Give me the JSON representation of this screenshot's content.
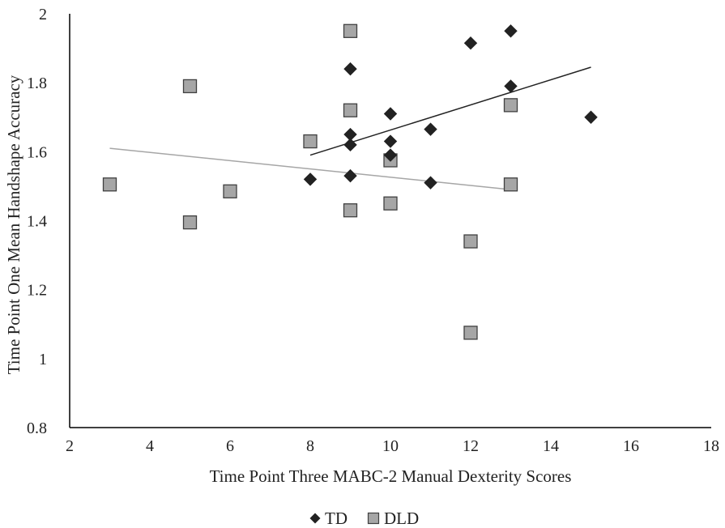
{
  "chart_data": {
    "type": "scatter",
    "xlabel": "Time Point Three MABC-2 Manual Dexterity Scores",
    "ylabel": "Time Point One Mean Handshape Accuracy",
    "xlim": [
      2,
      18
    ],
    "ylim": [
      0.8,
      2
    ],
    "xticks": [
      2,
      4,
      6,
      8,
      10,
      12,
      14,
      16,
      18
    ],
    "yticks": [
      0.8,
      1,
      1.2,
      1.4,
      1.6,
      1.8,
      2
    ],
    "ytick_labels": [
      "0.8",
      "1",
      "1.2",
      "1.4",
      "1.6",
      "1.8",
      "2"
    ],
    "grid": false,
    "legend": "bottom-center",
    "series": [
      {
        "name": "TD",
        "marker": "diamond",
        "color": "#222222",
        "points": [
          [
            8,
            1.52
          ],
          [
            9,
            1.84
          ],
          [
            9,
            1.65
          ],
          [
            9,
            1.62
          ],
          [
            9,
            1.53
          ],
          [
            10,
            1.71
          ],
          [
            10,
            1.63
          ],
          [
            10,
            1.59
          ],
          [
            11,
            1.665
          ],
          [
            11,
            1.51
          ],
          [
            12,
            1.915
          ],
          [
            13,
            1.95
          ],
          [
            13,
            1.79
          ],
          [
            15,
            1.7
          ]
        ],
        "trendline": {
          "x": [
            8,
            15
          ],
          "y": [
            1.59,
            1.845
          ],
          "color": "#222222"
        }
      },
      {
        "name": "DLD",
        "marker": "square",
        "color": "#a6a6a6",
        "points": [
          [
            3,
            1.505
          ],
          [
            5,
            1.79
          ],
          [
            5,
            1.395
          ],
          [
            6,
            1.485
          ],
          [
            8,
            1.63
          ],
          [
            9,
            1.95
          ],
          [
            9,
            1.72
          ],
          [
            9,
            1.43
          ],
          [
            10,
            1.575
          ],
          [
            10,
            1.45
          ],
          [
            12,
            1.34
          ],
          [
            12,
            1.075
          ],
          [
            13,
            1.735
          ],
          [
            13,
            1.505
          ]
        ],
        "trendline": {
          "x": [
            3,
            13
          ],
          "y": [
            1.61,
            1.49
          ],
          "color": "#a6a6a6"
        }
      }
    ]
  }
}
